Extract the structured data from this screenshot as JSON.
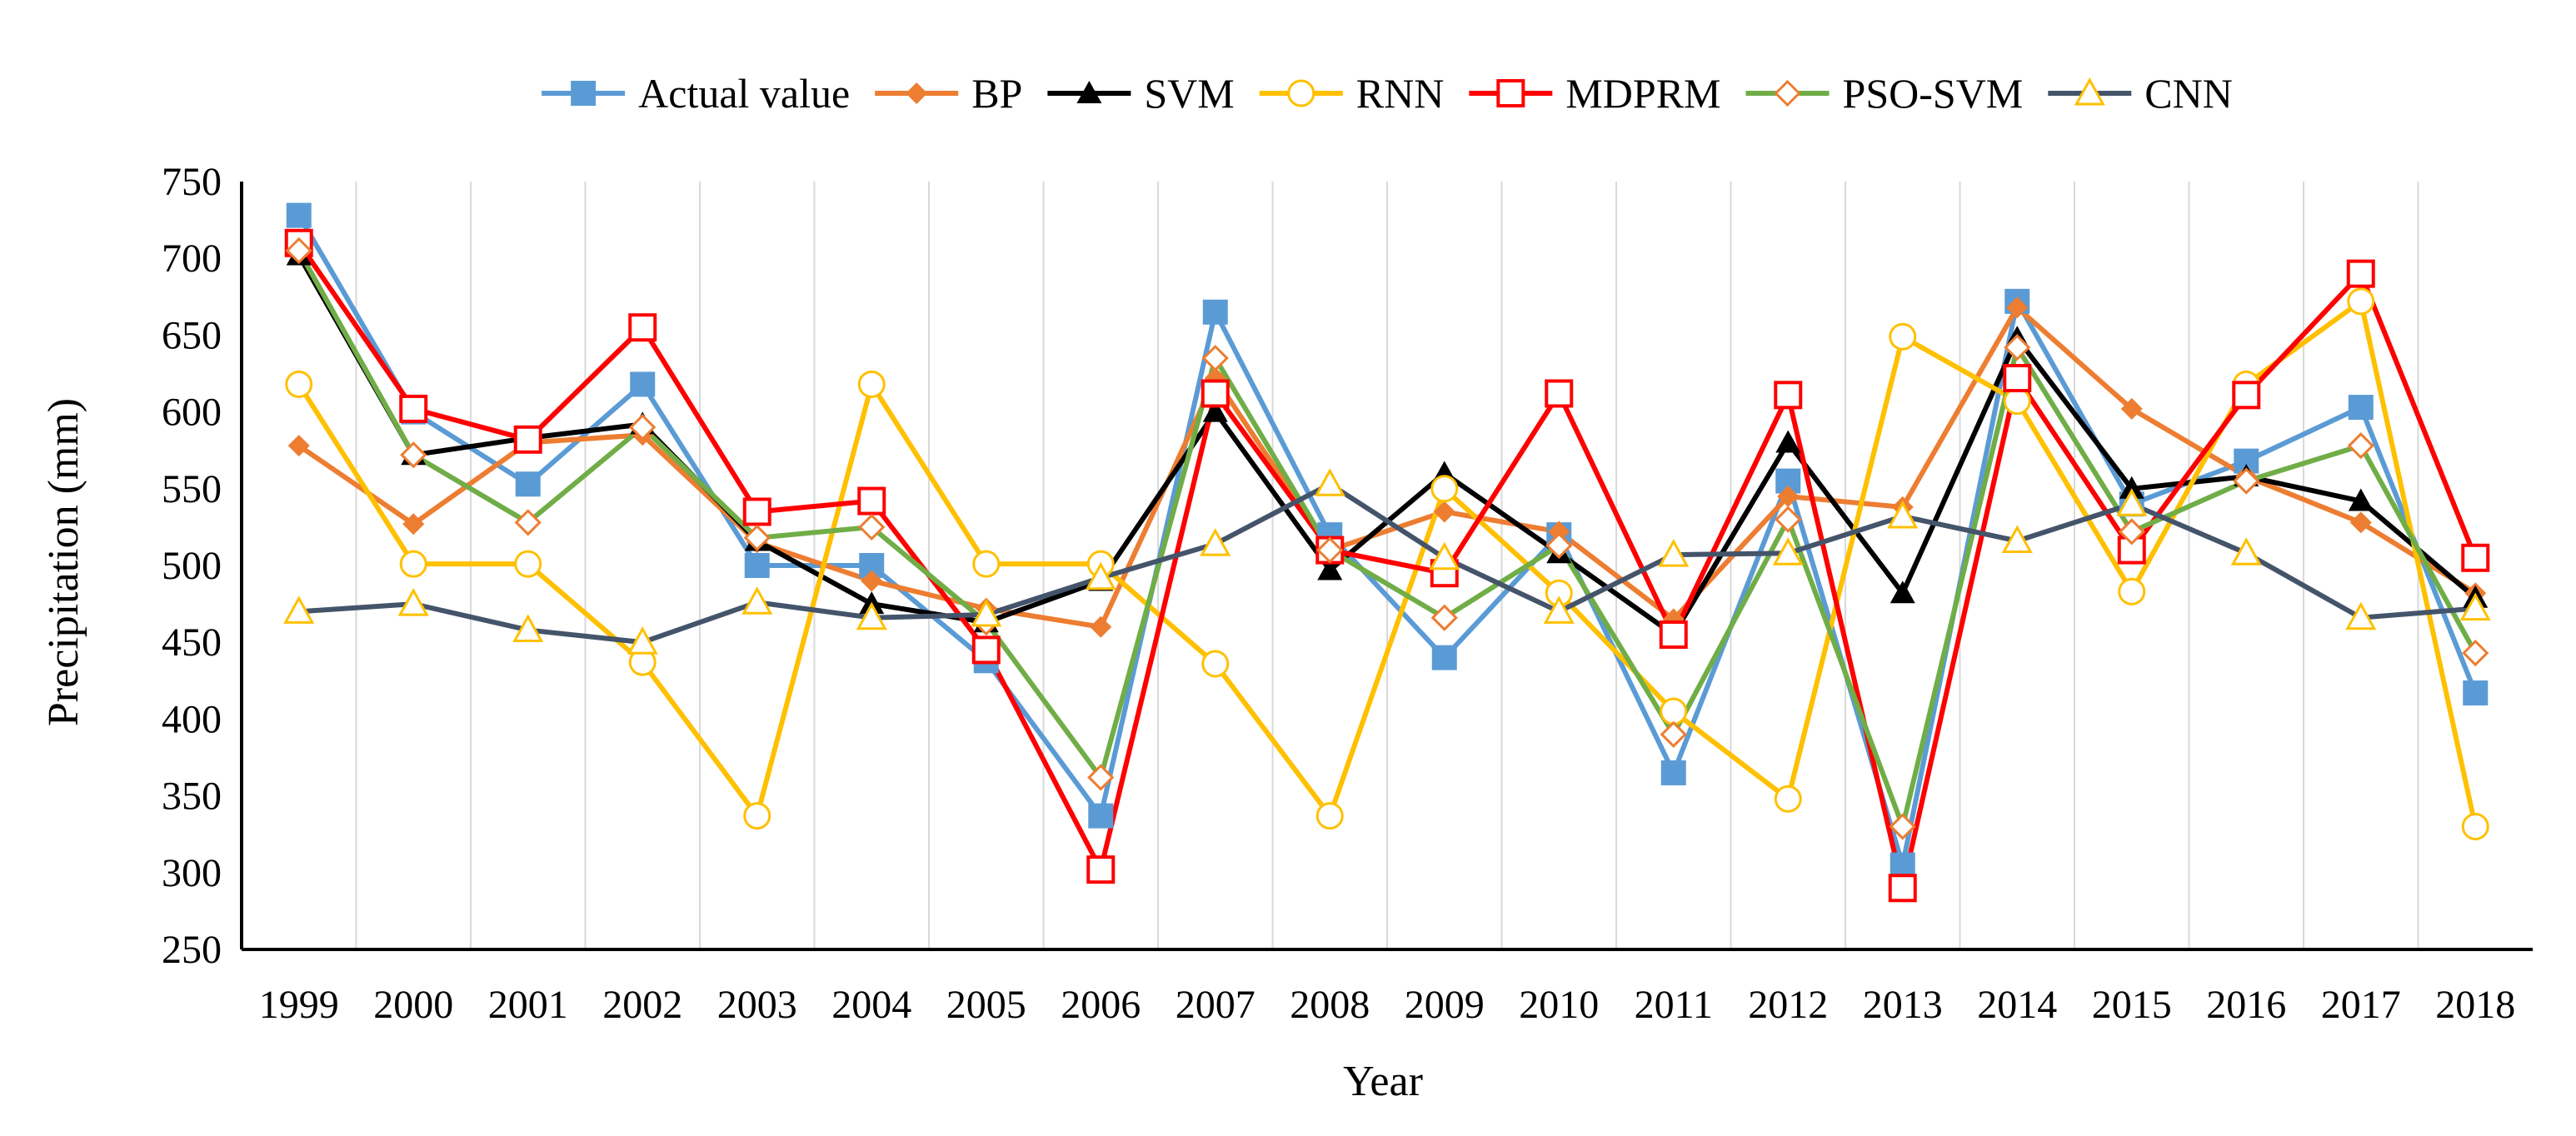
{
  "chart_data": {
    "type": "line",
    "title": "",
    "xlabel": "Year",
    "ylabel": "Precipitation (mm)",
    "ylim": [
      250,
      750
    ],
    "yticks": [
      250,
      300,
      350,
      400,
      450,
      500,
      550,
      600,
      650,
      700,
      750
    ],
    "categories": [
      "1999",
      "2000",
      "2001",
      "2002",
      "2003",
      "2004",
      "2005",
      "2006",
      "2007",
      "2008",
      "2009",
      "2010",
      "2011",
      "2012",
      "2013",
      "2014",
      "2015",
      "2016",
      "2017",
      "2018"
    ],
    "grid": "vertical",
    "legend_position": "top",
    "series": [
      {
        "name": "Actual value",
        "line_color": "#5b9bd5",
        "marker": "square-filled",
        "marker_color": "#5b9bd5",
        "values": [
          728,
          600,
          553,
          618,
          500,
          500,
          438,
          337,
          665,
          520,
          440,
          520,
          365,
          555,
          305,
          672,
          540,
          568,
          603,
          417
        ]
      },
      {
        "name": "BP",
        "line_color": "#ed7d31",
        "marker": "diamond-filled",
        "marker_color": "#ed7d31",
        "values": [
          578,
          527,
          580,
          585,
          515,
          490,
          472,
          460,
          622,
          510,
          535,
          522,
          465,
          545,
          538,
          668,
          602,
          558,
          528,
          482
        ]
      },
      {
        "name": "SVM",
        "line_color": "#000000",
        "marker": "triangle-filled",
        "marker_color": "#000000",
        "values": [
          702,
          572,
          583,
          592,
          516,
          475,
          463,
          490,
          600,
          497,
          560,
          508,
          455,
          580,
          482,
          648,
          550,
          558,
          542,
          479
        ]
      },
      {
        "name": "RNN",
        "line_color": "#ffc000",
        "marker": "circle-open",
        "marker_color": "#ffc000",
        "values": [
          618,
          501,
          501,
          437,
          337,
          618,
          501,
          501,
          436,
          337,
          550,
          482,
          405,
          348,
          649,
          607,
          483,
          618,
          672,
          330
        ]
      },
      {
        "name": "MDPRM",
        "line_color": "#ff0000",
        "marker": "square-open",
        "marker_color": "#ff0000",
        "values": [
          710,
          602,
          582,
          655,
          535,
          542,
          445,
          302,
          612,
          510,
          495,
          612,
          455,
          611,
          290,
          622,
          510,
          611,
          690,
          505
        ]
      },
      {
        "name": "PSO-SVM",
        "line_color": "#70ad47",
        "marker": "diamond-open",
        "marker_color": "#ed7d31",
        "values": [
          705,
          572,
          528,
          590,
          518,
          525,
          463,
          362,
          635,
          510,
          466,
          513,
          390,
          530,
          330,
          642,
          522,
          555,
          578,
          443
        ]
      },
      {
        "name": "CNN",
        "line_color": "#44546a",
        "marker": "triangle-open",
        "marker_color": "#ffc000",
        "values": [
          470,
          475,
          458,
          450,
          476,
          466,
          468,
          492,
          514,
          553,
          505,
          470,
          507,
          508,
          532,
          516,
          540,
          508,
          466,
          472
        ]
      }
    ]
  }
}
